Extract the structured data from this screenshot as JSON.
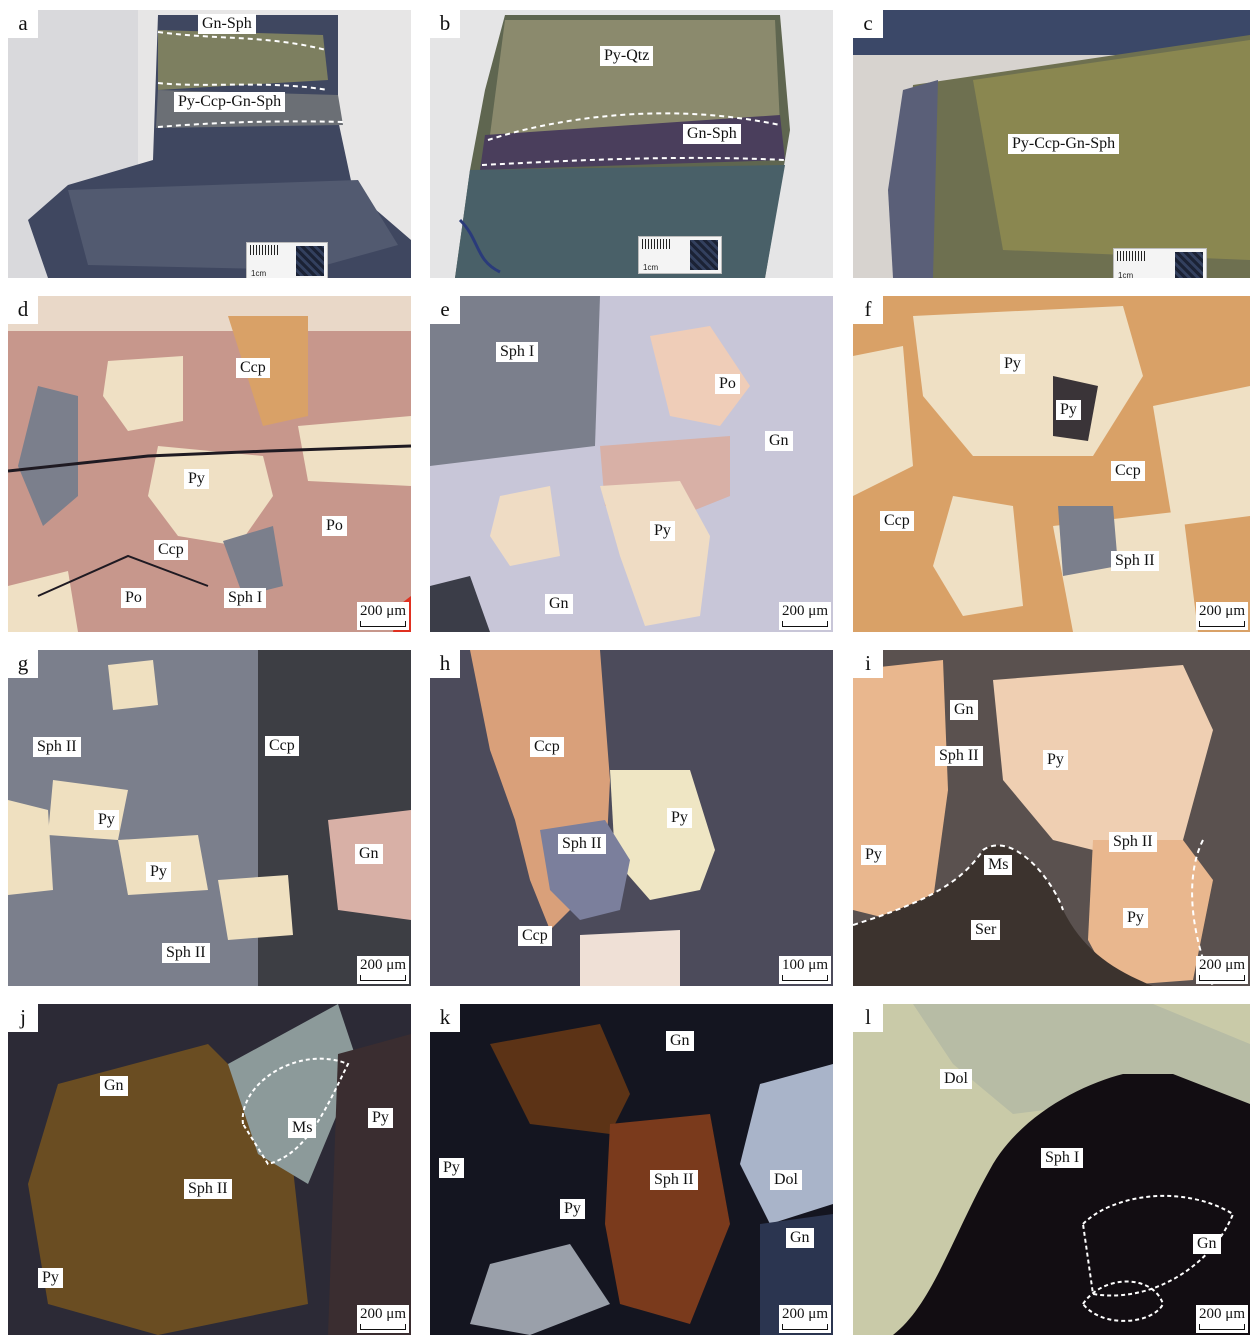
{
  "panels": {
    "a": {
      "label": "a",
      "texts": [
        "Gn-Sph",
        "Py-Ccp-Gn-Sph"
      ],
      "scale": "",
      "ruler": "1cm"
    },
    "b": {
      "label": "b",
      "texts": [
        "Py-Qtz",
        "Gn-Sph"
      ],
      "scale": "",
      "ruler": "1cm"
    },
    "c": {
      "label": "c",
      "texts": [
        "Py-Ccp-Gn-Sph"
      ],
      "scale": "",
      "ruler": "1cm"
    },
    "d": {
      "label": "d",
      "texts": [
        "Ccp",
        "Py",
        "Po",
        "Ccp",
        "Po",
        "Sph I"
      ],
      "scale": "200 μm"
    },
    "e": {
      "label": "e",
      "texts": [
        "Sph I",
        "Po",
        "Gn",
        "Py",
        "Gn"
      ],
      "scale": "200 μm"
    },
    "f": {
      "label": "f",
      "texts": [
        "Py",
        "Py",
        "Ccp",
        "Ccp",
        "Sph II"
      ],
      "scale": "200 μm"
    },
    "g": {
      "label": "g",
      "texts": [
        "Sph II",
        "Ccp",
        "Py",
        "Py",
        "Gn",
        "Sph II"
      ],
      "scale": "200 μm"
    },
    "h": {
      "label": "h",
      "texts": [
        "Ccp",
        "Py",
        "Sph II",
        "Ccp"
      ],
      "scale": "100 μm"
    },
    "i": {
      "label": "i",
      "texts": [
        "Gn",
        "Sph II",
        "Py",
        "Py",
        "Sph II",
        "Ms",
        "Ser",
        "Py"
      ],
      "scale": "200 μm"
    },
    "j": {
      "label": "j",
      "texts": [
        "Gn",
        "Ms",
        "Py",
        "Sph II",
        "Py"
      ],
      "scale": "200 μm"
    },
    "k": {
      "label": "k",
      "texts": [
        "Gn",
        "Py",
        "Sph II",
        "Dol",
        "Py",
        "Gn"
      ],
      "scale": "200 μm"
    },
    "l": {
      "label": "l",
      "texts": [
        "Dol",
        "Sph I",
        "Gn"
      ],
      "scale": "200 μm"
    }
  },
  "colors": {
    "rock": "#4d5568",
    "pyrite": "#efe0c4",
    "pyrrhotite": "#c7978c",
    "chalcopyrite": "#d9a167",
    "sphalerite_reflected": "#7b7f8c",
    "galena": "#c8c6d8",
    "sphalerite_transmitted": "#6a4d22",
    "dolomite": "#c9caa8"
  }
}
